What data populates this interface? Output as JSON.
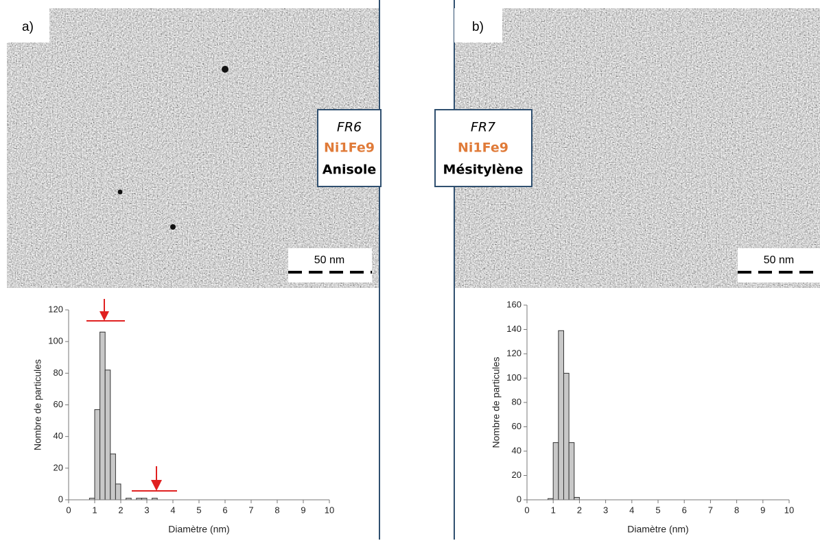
{
  "panels": [
    {
      "label": "a)",
      "sample": "FR6",
      "composition": "Ni1Fe9",
      "solvent": "Anisole",
      "scale_bar": "50 nm"
    },
    {
      "label": "b)",
      "sample": "FR7",
      "composition": "Ni1Fe9",
      "solvent": "Mésitylène",
      "scale_bar": "50 nm"
    }
  ],
  "chart_data": [
    {
      "type": "histogram",
      "xlabel": "Diamètre (nm)",
      "ylabel": "Nombre de particules",
      "bins": [
        0.8,
        1.0,
        1.2,
        1.4,
        1.6,
        1.8,
        2.0,
        2.2,
        2.4,
        2.6,
        2.8,
        3.0,
        3.2,
        3.4
      ],
      "counts": [
        1,
        57,
        106,
        82,
        29,
        10,
        0,
        1,
        0,
        1,
        1,
        0,
        1
      ],
      "color": "#c8c8c8",
      "xlim": [
        0,
        10
      ],
      "ylim": [
        0,
        120
      ],
      "xticks": [
        0,
        1,
        2,
        3,
        4,
        5,
        6,
        7,
        8,
        9,
        10
      ],
      "yticks": [
        0,
        20,
        40,
        60,
        80,
        100,
        120
      ]
    },
    {
      "type": "histogram",
      "xlabel": "Diamètre (nm)",
      "ylabel": "Nombre de particules",
      "bins": [
        0.8,
        1.0,
        1.2,
        1.4,
        1.6,
        1.8,
        2.0
      ],
      "counts": [
        1,
        47,
        139,
        104,
        47,
        2
      ],
      "color": "#c8c8c8",
      "xlim": [
        0,
        10
      ],
      "ylim": [
        0,
        160
      ],
      "xticks": [
        0,
        1,
        2,
        3,
        4,
        5,
        6,
        7,
        8,
        9,
        10
      ],
      "yticks": [
        0,
        20,
        40,
        60,
        80,
        100,
        120,
        140,
        160
      ]
    }
  ]
}
